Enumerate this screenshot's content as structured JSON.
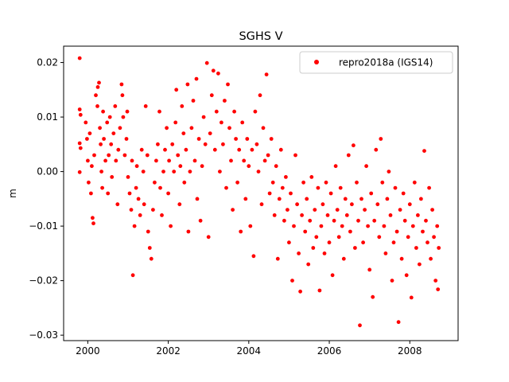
{
  "chart_data": {
    "type": "scatter",
    "title": "SGHS V",
    "xlabel": "",
    "ylabel": "m",
    "xlim": [
      1999.4,
      2009.2
    ],
    "ylim": [
      -0.031,
      0.023
    ],
    "xticks": [
      {
        "value": 2000,
        "label": "2000"
      },
      {
        "value": 2002,
        "label": "2002"
      },
      {
        "value": 2004,
        "label": "2004"
      },
      {
        "value": 2006,
        "label": "2006"
      },
      {
        "value": 2008,
        "label": "2008"
      }
    ],
    "yticks": [
      {
        "value": 0.02,
        "label": "0.02"
      },
      {
        "value": 0.01,
        "label": "0.01"
      },
      {
        "value": 0.0,
        "label": "0.00"
      },
      {
        "value": -0.01,
        "label": "−0.01"
      },
      {
        "value": -0.02,
        "label": "−0.02"
      },
      {
        "value": -0.03,
        "label": "−0.03"
      }
    ],
    "grid": false,
    "legend": "top-right",
    "series": [
      {
        "name": "repro2018a (IGS14)",
        "color": "#ff0000",
        "marker": "circle",
        "points": [
          [
            1999.8,
            0.0208
          ],
          [
            1999.8,
            0.0114
          ],
          [
            1999.82,
            0.0104
          ],
          [
            1999.8,
            0.0052
          ],
          [
            1999.82,
            0.0043
          ],
          [
            1999.8,
            -0.0001
          ],
          [
            1999.95,
            0.009
          ],
          [
            1999.98,
            0.006
          ],
          [
            2000.0,
            0.002
          ],
          [
            2000.02,
            -0.002
          ],
          [
            2000.05,
            0.007
          ],
          [
            2000.08,
            -0.004
          ],
          [
            2000.1,
            0.001
          ],
          [
            2000.12,
            -0.0085
          ],
          [
            2000.14,
            -0.0095
          ],
          [
            2000.16,
            0.003
          ],
          [
            2000.2,
            0.014
          ],
          [
            2000.24,
            0.012
          ],
          [
            2000.25,
            0.0155
          ],
          [
            2000.28,
            0.0163
          ],
          [
            2000.3,
            0.008
          ],
          [
            2000.32,
            0.005
          ],
          [
            2000.34,
            0.0
          ],
          [
            2000.36,
            -0.003
          ],
          [
            2000.38,
            0.011
          ],
          [
            2000.4,
            0.006
          ],
          [
            2000.44,
            0.002
          ],
          [
            2000.48,
            0.009
          ],
          [
            2000.5,
            -0.004
          ],
          [
            2000.52,
            0.003
          ],
          [
            2000.55,
            0.01
          ],
          [
            2000.58,
            0.005
          ],
          [
            2000.6,
            -0.001
          ],
          [
            2000.64,
            0.007
          ],
          [
            2000.68,
            0.012
          ],
          [
            2000.7,
            0.002
          ],
          [
            2000.74,
            -0.006
          ],
          [
            2000.76,
            0.004
          ],
          [
            2000.8,
            0.008
          ],
          [
            2000.84,
            0.016
          ],
          [
            2000.86,
            0.014
          ],
          [
            2000.88,
            0.01
          ],
          [
            2000.92,
            0.003
          ],
          [
            2000.96,
            0.006
          ],
          [
            2000.98,
            0.011
          ],
          [
            2001.0,
            -0.001
          ],
          [
            2001.04,
            -0.004
          ],
          [
            2001.08,
            -0.007
          ],
          [
            2001.1,
            0.002
          ],
          [
            2001.12,
            -0.019
          ],
          [
            2001.16,
            -0.01
          ],
          [
            2001.2,
            -0.003
          ],
          [
            2001.22,
            0.001
          ],
          [
            2001.26,
            -0.005
          ],
          [
            2001.3,
            -0.008
          ],
          [
            2001.34,
            0.004
          ],
          [
            2001.38,
            0.0
          ],
          [
            2001.4,
            -0.006
          ],
          [
            2001.44,
            0.012
          ],
          [
            2001.48,
            0.003
          ],
          [
            2001.5,
            -0.011
          ],
          [
            2001.54,
            -0.014
          ],
          [
            2001.58,
            -0.016
          ],
          [
            2001.62,
            -0.007
          ],
          [
            2001.66,
            -0.002
          ],
          [
            2001.7,
            0.002
          ],
          [
            2001.74,
            0.005
          ],
          [
            2001.78,
            0.011
          ],
          [
            2001.8,
            -0.003
          ],
          [
            2001.84,
            -0.008
          ],
          [
            2001.88,
            0.0
          ],
          [
            2001.92,
            0.004
          ],
          [
            2001.96,
            0.008
          ],
          [
            2002.0,
            -0.004
          ],
          [
            2002.02,
            0.002
          ],
          [
            2002.06,
            -0.01
          ],
          [
            2002.1,
            0.005
          ],
          [
            2002.14,
            0.0
          ],
          [
            2002.18,
            0.009
          ],
          [
            2002.2,
            0.015
          ],
          [
            2002.24,
            0.003
          ],
          [
            2002.28,
            -0.006
          ],
          [
            2002.3,
            0.001
          ],
          [
            2002.34,
            0.012
          ],
          [
            2002.38,
            0.007
          ],
          [
            2002.4,
            -0.002
          ],
          [
            2002.44,
            0.004
          ],
          [
            2002.48,
            0.016
          ],
          [
            2002.5,
            -0.011
          ],
          [
            2002.54,
            0.0
          ],
          [
            2002.58,
            0.008
          ],
          [
            2002.62,
            0.013
          ],
          [
            2002.66,
            0.002
          ],
          [
            2002.7,
            0.017
          ],
          [
            2002.72,
            -0.005
          ],
          [
            2002.76,
            0.006
          ],
          [
            2002.8,
            -0.009
          ],
          [
            2002.84,
            0.001
          ],
          [
            2002.88,
            0.01
          ],
          [
            2002.92,
            0.005
          ],
          [
            2002.96,
            0.0199
          ],
          [
            2003.0,
            -0.012
          ],
          [
            2003.04,
            0.007
          ],
          [
            2003.08,
            0.014
          ],
          [
            2003.12,
            0.0185
          ],
          [
            2003.16,
            0.004
          ],
          [
            2003.2,
            0.011
          ],
          [
            2003.24,
            0.018
          ],
          [
            2003.28,
            0.0
          ],
          [
            2003.32,
            0.009
          ],
          [
            2003.36,
            0.005
          ],
          [
            2003.4,
            0.013
          ],
          [
            2003.44,
            -0.003
          ],
          [
            2003.48,
            0.016
          ],
          [
            2003.52,
            0.008
          ],
          [
            2003.56,
            0.002
          ],
          [
            2003.6,
            -0.007
          ],
          [
            2003.64,
            0.011
          ],
          [
            2003.68,
            0.006
          ],
          [
            2003.72,
            -0.002
          ],
          [
            2003.76,
            0.004
          ],
          [
            2003.8,
            -0.011
          ],
          [
            2003.84,
            0.009
          ],
          [
            2003.88,
            0.002
          ],
          [
            2003.92,
            -0.005
          ],
          [
            2003.96,
            0.006
          ],
          [
            2004.0,
            0.001
          ],
          [
            2004.04,
            -0.01
          ],
          [
            2004.08,
            0.004
          ],
          [
            2004.12,
            -0.0155
          ],
          [
            2004.16,
            0.011
          ],
          [
            2004.2,
            0.005
          ],
          [
            2004.24,
            0.0
          ],
          [
            2004.28,
            0.014
          ],
          [
            2004.32,
            -0.006
          ],
          [
            2004.36,
            0.008
          ],
          [
            2004.4,
            0.002
          ],
          [
            2004.44,
            0.0178
          ],
          [
            2004.48,
            0.003
          ],
          [
            2004.52,
            -0.004
          ],
          [
            2004.56,
            0.006
          ],
          [
            2004.6,
            -0.002
          ],
          [
            2004.64,
            -0.008
          ],
          [
            2004.68,
            0.001
          ],
          [
            2004.72,
            -0.016
          ],
          [
            2004.76,
            -0.005
          ],
          [
            2004.8,
            0.004
          ],
          [
            2004.84,
            -0.003
          ],
          [
            2004.88,
            -0.009
          ],
          [
            2004.92,
            -0.001
          ],
          [
            2004.96,
            -0.007
          ],
          [
            2005.0,
            -0.013
          ],
          [
            2005.04,
            -0.004
          ],
          [
            2005.08,
            -0.02
          ],
          [
            2005.12,
            -0.01
          ],
          [
            2005.16,
            0.003
          ],
          [
            2005.2,
            -0.006
          ],
          [
            2005.24,
            -0.015
          ],
          [
            2005.28,
            -0.022
          ],
          [
            2005.32,
            -0.008
          ],
          [
            2005.36,
            -0.002
          ],
          [
            2005.4,
            -0.011
          ],
          [
            2005.44,
            -0.005
          ],
          [
            2005.48,
            -0.017
          ],
          [
            2005.52,
            -0.009
          ],
          [
            2005.56,
            -0.001
          ],
          [
            2005.6,
            -0.014
          ],
          [
            2005.64,
            -0.007
          ],
          [
            2005.68,
            -0.012
          ],
          [
            2005.72,
            -0.003
          ],
          [
            2005.76,
            -0.0218
          ],
          [
            2005.8,
            -0.01
          ],
          [
            2005.84,
            -0.006
          ],
          [
            2005.88,
            -0.015
          ],
          [
            2005.92,
            -0.002
          ],
          [
            2005.96,
            -0.008
          ],
          [
            2006.0,
            -0.013
          ],
          [
            2006.04,
            -0.004
          ],
          [
            2006.08,
            -0.019
          ],
          [
            2006.12,
            -0.009
          ],
          [
            2006.16,
            0.001
          ],
          [
            2006.2,
            -0.007
          ],
          [
            2006.24,
            -0.012
          ],
          [
            2006.28,
            -0.003
          ],
          [
            2006.32,
            -0.01
          ],
          [
            2006.36,
            -0.016
          ],
          [
            2006.4,
            -0.005
          ],
          [
            2006.44,
            -0.008
          ],
          [
            2006.48,
            0.003
          ],
          [
            2006.52,
            -0.011
          ],
          [
            2006.56,
            -0.006
          ],
          [
            2006.6,
            0.0048
          ],
          [
            2006.64,
            -0.014
          ],
          [
            2006.68,
            -0.002
          ],
          [
            2006.72,
            -0.009
          ],
          [
            2006.76,
            -0.0282
          ],
          [
            2006.8,
            -0.005
          ],
          [
            2006.84,
            -0.013
          ],
          [
            2006.88,
            -0.007
          ],
          [
            2006.92,
            0.001
          ],
          [
            2006.96,
            -0.01
          ],
          [
            2007.0,
            -0.018
          ],
          [
            2007.04,
            -0.004
          ],
          [
            2007.08,
            -0.023
          ],
          [
            2007.12,
            -0.009
          ],
          [
            2007.16,
            0.004
          ],
          [
            2007.2,
            -0.006
          ],
          [
            2007.24,
            -0.012
          ],
          [
            2007.28,
            0.006
          ],
          [
            2007.32,
            -0.002
          ],
          [
            2007.36,
            -0.01
          ],
          [
            2007.4,
            -0.015
          ],
          [
            2007.44,
            -0.005
          ],
          [
            2007.48,
            0.0
          ],
          [
            2007.52,
            -0.008
          ],
          [
            2007.56,
            -0.02
          ],
          [
            2007.6,
            -0.013
          ],
          [
            2007.64,
            -0.003
          ],
          [
            2007.68,
            -0.011
          ],
          [
            2007.72,
            -0.0276
          ],
          [
            2007.76,
            -0.007
          ],
          [
            2007.8,
            -0.016
          ],
          [
            2007.84,
            -0.004
          ],
          [
            2007.88,
            -0.009
          ],
          [
            2007.92,
            -0.019
          ],
          [
            2007.96,
            -0.012
          ],
          [
            2008.0,
            -0.006
          ],
          [
            2008.04,
            -0.0231
          ],
          [
            2008.08,
            -0.01
          ],
          [
            2008.12,
            -0.002
          ],
          [
            2008.16,
            -0.014
          ],
          [
            2008.2,
            -0.008
          ],
          [
            2008.24,
            -0.017
          ],
          [
            2008.28,
            -0.005
          ],
          [
            2008.32,
            -0.011
          ],
          [
            2008.36,
            0.0038
          ],
          [
            2008.4,
            -0.009
          ],
          [
            2008.44,
            -0.013
          ],
          [
            2008.48,
            -0.003
          ],
          [
            2008.52,
            -0.016
          ],
          [
            2008.56,
            -0.007
          ],
          [
            2008.6,
            -0.012
          ],
          [
            2008.64,
            -0.02
          ],
          [
            2008.68,
            -0.01
          ],
          [
            2008.7,
            -0.0216
          ],
          [
            2008.72,
            -0.014
          ]
        ]
      }
    ]
  }
}
